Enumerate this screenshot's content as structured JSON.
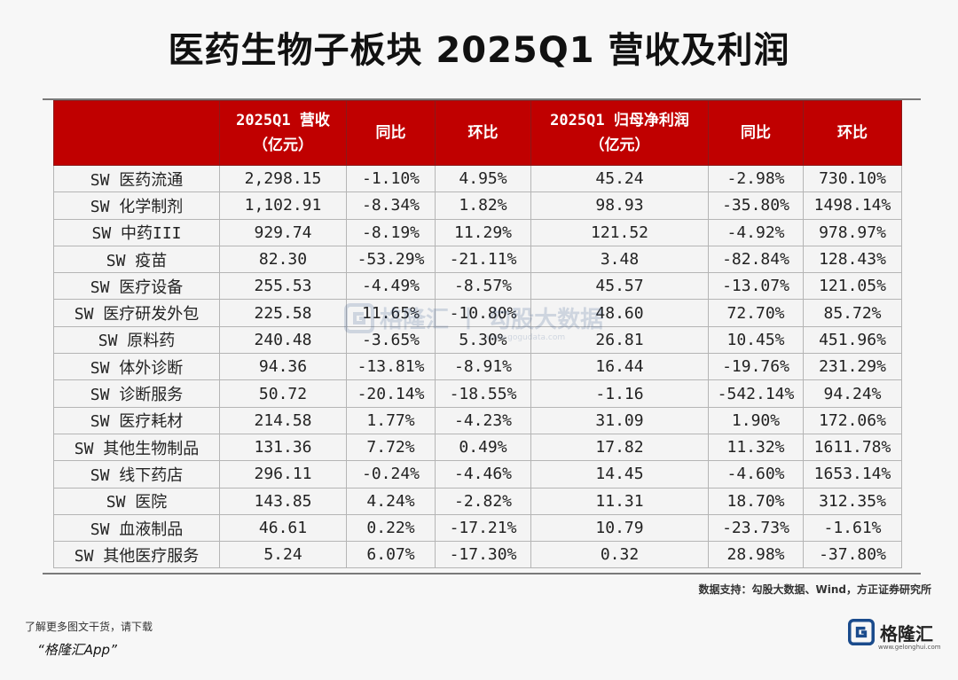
{
  "title": "医药生物子板块 2025Q1 营收及利润",
  "table": {
    "headers": [
      "",
      "2025Q1 营收\n（亿元）",
      "同比",
      "环比",
      "2025Q1 归母净利润\n（亿元）",
      "同比",
      "环比"
    ],
    "rows": [
      [
        "SW 医药流通",
        "2,298.15",
        "-1.10%",
        "4.95%",
        "45.24",
        "-2.98%",
        "730.10%"
      ],
      [
        "SW 化学制剂",
        "1,102.91",
        "-8.34%",
        "1.82%",
        "98.93",
        "-35.80%",
        "1498.14%"
      ],
      [
        "SW 中药III",
        "929.74",
        "-8.19%",
        "11.29%",
        "121.52",
        "-4.92%",
        "978.97%"
      ],
      [
        "SW 疫苗",
        "82.30",
        "-53.29%",
        "-21.11%",
        "3.48",
        "-82.84%",
        "128.43%"
      ],
      [
        "SW 医疗设备",
        "255.53",
        "-4.49%",
        "-8.57%",
        "45.57",
        "-13.07%",
        "121.05%"
      ],
      [
        "SW 医疗研发外包",
        "225.58",
        "11.65%",
        "-10.80%",
        "48.60",
        "72.70%",
        "85.72%"
      ],
      [
        "SW 原料药",
        "240.48",
        "-3.65%",
        "5.30%",
        "26.81",
        "10.45%",
        "451.96%"
      ],
      [
        "SW 体外诊断",
        "94.36",
        "-13.81%",
        "-8.91%",
        "16.44",
        "-19.76%",
        "231.29%"
      ],
      [
        "SW 诊断服务",
        "50.72",
        "-20.14%",
        "-18.55%",
        "-1.16",
        "-542.14%",
        "94.24%"
      ],
      [
        "SW 医疗耗材",
        "214.58",
        "1.77%",
        "-4.23%",
        "31.09",
        "1.90%",
        "172.06%"
      ],
      [
        "SW 其他生物制品",
        "131.36",
        "7.72%",
        "0.49%",
        "17.82",
        "11.32%",
        "1611.78%"
      ],
      [
        "SW 线下药店",
        "296.11",
        "-0.24%",
        "-4.46%",
        "14.45",
        "-4.60%",
        "1653.14%"
      ],
      [
        "SW 医院",
        "143.85",
        "4.24%",
        "-2.82%",
        "11.31",
        "18.70%",
        "312.35%"
      ],
      [
        "SW 血液制品",
        "46.61",
        "0.22%",
        "-17.21%",
        "10.79",
        "-23.73%",
        "-1.61%"
      ],
      [
        "SW 其他医疗服务",
        "5.24",
        "6.07%",
        "-17.30%",
        "0.32",
        "28.98%",
        "-37.80%"
      ]
    ]
  },
  "source": "数据支持：勾股大数据、Wind，方正证券研究所",
  "watermark": {
    "brand": "格隆汇 丨 勾股大数据",
    "url": "www.gogudata.com"
  },
  "footer": {
    "note_line1": "了解更多图文干货，请下载",
    "note_line2": "“格隆汇App”",
    "brand_name": "格隆汇",
    "brand_url": "www.gelonghui.com"
  },
  "colors": {
    "header_bg": "#c00000",
    "brand_blue": "#1a4b8c"
  },
  "icons": [
    "gelonghui-logo-icon"
  ]
}
